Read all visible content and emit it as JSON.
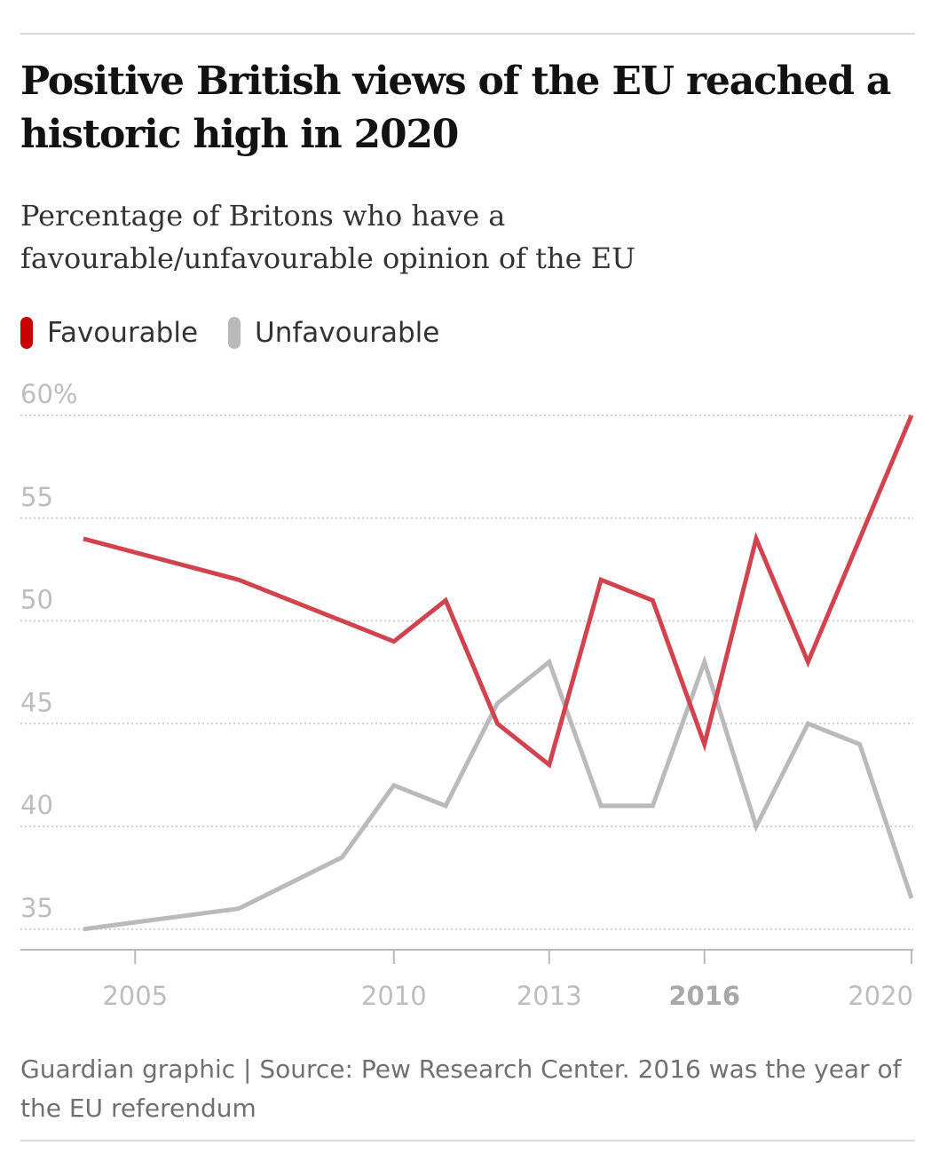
{
  "header": {
    "title": "Positive British views of the EU reached a historic high in 2020",
    "subtitle": "Percentage of Britons who have a favourable/unfavourable opinion of the EU"
  },
  "legend": [
    {
      "label": "Favourable",
      "color": "#c70000"
    },
    {
      "label": "Unfavourable",
      "color": "#bababa"
    }
  ],
  "footer": {
    "source": "Guardian graphic | Source: Pew Research Center. 2016 was the year of the EU referendum"
  },
  "chart_data": {
    "type": "line",
    "title": "Positive British views of the EU reached a historic high in 2020",
    "subtitle": "Percentage of Britons who have a favourable/unfavourable opinion of the EU",
    "xlim": [
      2003.95,
      2020
    ],
    "ylim": [
      34,
      60
    ],
    "y_ticks": [
      {
        "value": 60,
        "label": "60%"
      },
      {
        "value": 55,
        "label": "55"
      },
      {
        "value": 50,
        "label": "50"
      },
      {
        "value": 45,
        "label": "45"
      },
      {
        "value": 40,
        "label": "40"
      },
      {
        "value": 35,
        "label": "35"
      }
    ],
    "x_ticks": [
      {
        "value": 2005,
        "label": "2005",
        "bold": false
      },
      {
        "value": 2010,
        "label": "2010",
        "bold": false
      },
      {
        "value": 2013,
        "label": "2013",
        "bold": false
      },
      {
        "value": 2016,
        "label": "2016",
        "bold": true
      },
      {
        "value": 2020,
        "label": "2020",
        "bold": false
      }
    ],
    "series": [
      {
        "name": "Favourable",
        "color": "#c70000",
        "x": [
          2004,
          2007,
          2010,
          2011,
          2012,
          2013,
          2014,
          2015,
          2016,
          2017,
          2018,
          2020
        ],
        "y": [
          54,
          52,
          49,
          51,
          45,
          43,
          52,
          51,
          44,
          54,
          48,
          60
        ]
      },
      {
        "name": "Unfavourable",
        "color": "#bababa",
        "x": [
          2004,
          2007,
          2009,
          2010,
          2011,
          2012,
          2013,
          2014,
          2015,
          2016,
          2017,
          2018,
          2019,
          2020
        ],
        "y": [
          35,
          36,
          38.5,
          42,
          41,
          46,
          48,
          41,
          41,
          48,
          40,
          45,
          44,
          36.5
        ]
      }
    ],
    "grid": true,
    "legend_position": "top-left"
  }
}
